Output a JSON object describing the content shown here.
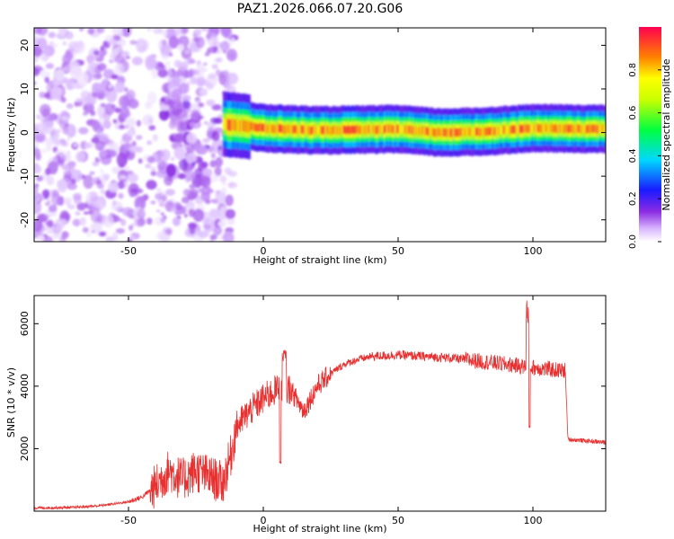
{
  "title": "PAZ1.2026.066.07.20.G06",
  "chart_data": [
    {
      "type": "heatmap",
      "name": "spectrogram",
      "xlabel": "Height of straight line (km)",
      "ylabel": "Frequency (Hz)",
      "xlim": [
        -85,
        127
      ],
      "ylim": [
        -25,
        24
      ],
      "xticks": [
        -50,
        0,
        50,
        100
      ],
      "yticks": [
        -20,
        -10,
        0,
        10,
        20
      ],
      "colorbar": {
        "label": "Normalized spectral amplitude",
        "range": [
          0.0,
          1.0
        ],
        "ticks": [
          0.0,
          0.2,
          0.4,
          0.6,
          0.8
        ],
        "tick_labels": [
          "0.0",
          "0.2",
          "0.4",
          "0.6",
          "0.8"
        ]
      },
      "description_regions": [
        {
          "x_range": [
            -85,
            -15
          ],
          "kind": "noise",
          "amplitude": [
            0.02,
            0.12
          ]
        },
        {
          "x_range": [
            -15,
            127
          ],
          "kind": "tone",
          "center_hz": [
            [
              -15,
              2
            ],
            [
              0,
              1
            ],
            [
              20,
              0.5
            ],
            [
              50,
              0.8
            ],
            [
              65,
              0
            ],
            [
              80,
              0.2
            ],
            [
              100,
              1
            ],
            [
              127,
              0.8
            ]
          ],
          "peak_amplitude": 0.95
        }
      ]
    },
    {
      "type": "line",
      "name": "snr",
      "xlabel": "Height of straight line (km)",
      "ylabel": "SNR (10 * v/v)",
      "xlim": [
        -85,
        127
      ],
      "ylim": [
        0,
        6900
      ],
      "xticks": [
        -50,
        0,
        50,
        100
      ],
      "yticks": [
        2000,
        4000,
        6000
      ],
      "color": "#e83030",
      "series": [
        {
          "name": "SNR",
          "x": [
            -85,
            -70,
            -60,
            -50,
            -45,
            -40,
            -35,
            -30,
            -25,
            -20,
            -15,
            -12,
            -10,
            -5,
            0,
            5,
            10,
            15,
            20,
            25,
            30,
            35,
            40,
            50,
            60,
            70,
            80,
            90,
            95,
            98,
            100,
            105,
            110,
            112,
            113,
            120,
            127
          ],
          "values": [
            100,
            120,
            180,
            300,
            450,
            800,
            1300,
            1000,
            1300,
            1100,
            900,
            1800,
            2700,
            3200,
            3600,
            3900,
            3900,
            3200,
            4000,
            4400,
            4700,
            4850,
            4950,
            5000,
            4950,
            4900,
            4800,
            4700,
            4650,
            4600,
            4600,
            4550,
            4500,
            4500,
            2300,
            2250,
            2200
          ]
        }
      ]
    }
  ]
}
